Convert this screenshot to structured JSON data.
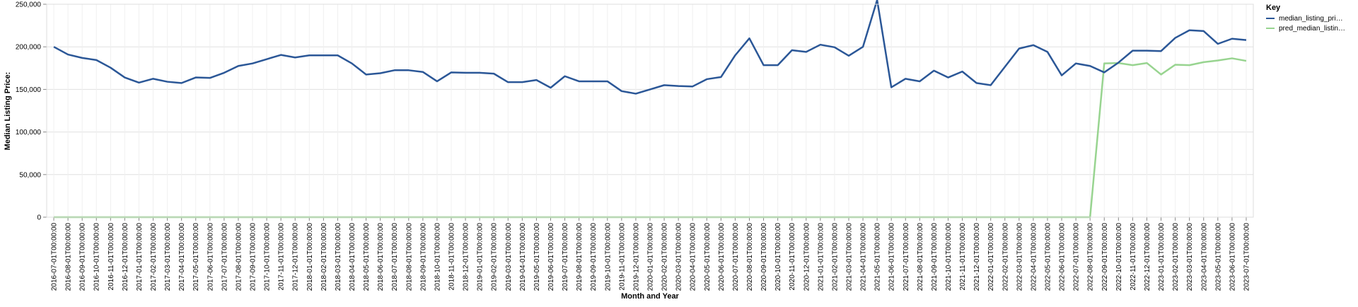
{
  "chart_data": {
    "type": "line",
    "xlabel": "Month and Year",
    "ylabel": "Median Listing Price:",
    "ylim": [
      0,
      250000
    ],
    "yticks": [
      "0",
      "50,000",
      "100,000",
      "150,000",
      "200,000",
      "250,000"
    ],
    "ytick_values": [
      0,
      50000,
      100000,
      150000,
      200000,
      250000
    ],
    "grid": true,
    "legend": {
      "title": "Key",
      "placement": "top-right",
      "entries": [
        "median_listing_pri…",
        "pred_median_listin…"
      ]
    },
    "x": [
      "2016-07-01T00:00:00",
      "2016-08-01T00:00:00",
      "2016-09-01T00:00:00",
      "2016-10-01T00:00:00",
      "2016-11-01T00:00:00",
      "2016-12-01T00:00:00",
      "2017-01-01T00:00:00",
      "2017-02-01T00:00:00",
      "2017-03-01T00:00:00",
      "2017-04-01T00:00:00",
      "2017-05-01T00:00:00",
      "2017-06-01T00:00:00",
      "2017-07-01T00:00:00",
      "2017-08-01T00:00:00",
      "2017-09-01T00:00:00",
      "2017-10-01T00:00:00",
      "2017-11-01T00:00:00",
      "2017-12-01T00:00:00",
      "2018-01-01T00:00:00",
      "2018-02-01T00:00:00",
      "2018-03-01T00:00:00",
      "2018-04-01T00:00:00",
      "2018-05-01T00:00:00",
      "2018-06-01T00:00:00",
      "2018-07-01T00:00:00",
      "2018-08-01T00:00:00",
      "2018-09-01T00:00:00",
      "2018-10-01T00:00:00",
      "2018-11-01T00:00:00",
      "2018-12-01T00:00:00",
      "2019-01-01T00:00:00",
      "2019-02-01T00:00:00",
      "2019-03-01T00:00:00",
      "2019-04-01T00:00:00",
      "2019-05-01T00:00:00",
      "2019-06-01T00:00:00",
      "2019-07-01T00:00:00",
      "2019-08-01T00:00:00",
      "2019-09-01T00:00:00",
      "2019-10-01T00:00:00",
      "2019-11-01T00:00:00",
      "2019-12-01T00:00:00",
      "2020-01-01T00:00:00",
      "2020-02-01T00:00:00",
      "2020-03-01T00:00:00",
      "2020-04-01T00:00:00",
      "2020-05-01T00:00:00",
      "2020-06-01T00:00:00",
      "2020-07-01T00:00:00",
      "2020-08-01T00:00:00",
      "2020-09-01T00:00:00",
      "2020-10-01T00:00:00",
      "2020-11-01T00:00:00",
      "2020-12-01T00:00:00",
      "2021-01-01T00:00:00",
      "2021-02-01T00:00:00",
      "2021-03-01T00:00:00",
      "2021-04-01T00:00:00",
      "2021-05-01T00:00:00",
      "2021-06-01T00:00:00",
      "2021-07-01T00:00:00",
      "2021-08-01T00:00:00",
      "2021-09-01T00:00:00",
      "2021-10-01T00:00:00",
      "2021-11-01T00:00:00",
      "2021-12-01T00:00:00",
      "2022-01-01T00:00:00",
      "2022-02-01T00:00:00",
      "2022-03-01T00:00:00",
      "2022-04-01T00:00:00",
      "2022-05-01T00:00:00",
      "2022-06-01T00:00:00",
      "2022-07-01T00:00:00",
      "2022-08-01T00:00:00",
      "2022-09-01T00:00:00",
      "2022-10-01T00:00:00",
      "2022-11-01T00:00:00",
      "2022-12-01T00:00:00",
      "2023-01-01T00:00:00",
      "2023-02-01T00:00:00",
      "2023-03-01T00:00:00",
      "2023-04-01T00:00:00",
      "2023-05-01T00:00:00",
      "2023-06-01T00:00:00",
      "2023-07-01T00:00:00"
    ],
    "series": [
      {
        "name": "median_listing_pri…",
        "color": "#2b5797",
        "values": [
          200000,
          191000,
          187000,
          184500,
          175500,
          164000,
          158000,
          162500,
          159000,
          157500,
          164000,
          163500,
          169500,
          177500,
          180500,
          185500,
          190500,
          187500,
          190000,
          190000,
          190000,
          180500,
          167500,
          169000,
          172500,
          172500,
          170500,
          159500,
          170000,
          169500,
          169500,
          168500,
          158500,
          158500,
          161000,
          152000,
          165500,
          159500,
          159500,
          159500,
          148000,
          145000,
          150000,
          155000,
          154000,
          153500,
          162000,
          164500,
          190000,
          210000,
          178500,
          178500,
          196000,
          194000,
          202500,
          199500,
          189500,
          200000,
          255000,
          152500,
          162500,
          159500,
          172000,
          164000,
          171000,
          157500,
          155000,
          176500,
          198000,
          202000,
          194000,
          166500,
          180500,
          177500,
          170000,
          181500,
          195500,
          195500,
          195000,
          210500,
          219500,
          218500,
          203500,
          209500,
          208000
        ]
      },
      {
        "name": "pred_median_listin…",
        "color": "#98d490",
        "values": [
          0,
          0,
          0,
          0,
          0,
          0,
          0,
          0,
          0,
          0,
          0,
          0,
          0,
          0,
          0,
          0,
          0,
          0,
          0,
          0,
          0,
          0,
          0,
          0,
          0,
          0,
          0,
          0,
          0,
          0,
          0,
          0,
          0,
          0,
          0,
          0,
          0,
          0,
          0,
          0,
          0,
          0,
          0,
          0,
          0,
          0,
          0,
          0,
          0,
          0,
          0,
          0,
          0,
          0,
          0,
          0,
          0,
          0,
          0,
          0,
          0,
          0,
          0,
          0,
          0,
          0,
          0,
          0,
          0,
          0,
          0,
          0,
          0,
          0,
          180500,
          181000,
          178500,
          181000,
          167500,
          179000,
          178500,
          182000,
          184000,
          186500,
          183500
        ]
      }
    ]
  }
}
